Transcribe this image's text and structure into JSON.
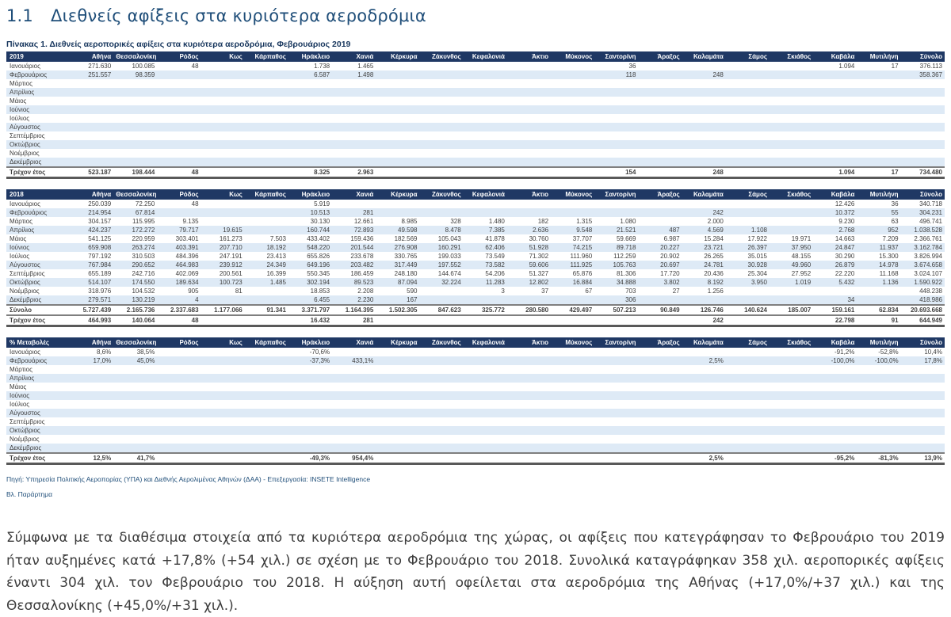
{
  "page": {
    "section_number": "1.1",
    "section_title": "Διεθνείς αφίξεις στα κυριότερα αεροδρόμια",
    "table_caption": "Πίνακας 1. Διεθνείς αεροπορικές αφίξεις στα κυριότερα αεροδρόμια, Φεβρουάριος 2019",
    "source_note": "Πηγή: Υπηρεσία Πολιτικής Αεροπορίας (ΥΠΑ) και Διεθνής  Αερολιμένας Αθηνών (ΔΑΑ) - Επεξεργασία: INSETE Intelligence",
    "appendix_note": "Βλ. Παράρτημα",
    "body_paragraph": "Σύμφωνα με τα διαθέσιμα στοιχεία από τα κυριότερα αεροδρόμια της χώρας, οι αφίξεις που κατεγράφησαν το Φεβρουάριο του 2019 ήταν αυξημένες κατά +17,8% (+54 χιλ.) σε σχέση με το Φεβρουάριο του 2018. Συνολικά καταγράφηκαν 358 χιλ. αεροπορικές αφίξεις έναντι 304 χιλ. τον Φεβρουάριο του 2018. Η αύξηση αυτή οφείλεται στα αεροδρόμια της Αθήνας (+17,0%/+37 χιλ.) και της Θεσσαλονίκης (+45,0%/+31 χιλ.)."
  },
  "colors": {
    "header_bg": "#1F3864",
    "stripe": "#DEEAF6",
    "title_blue": "#1F4E79",
    "caption_blue": "#17365D",
    "cell_text": "#404040"
  },
  "columns": [
    "Αθήνα",
    "Θεσσαλονίκη",
    "Ρόδος",
    "Κως",
    "Κάρπαθος",
    "Ηράκλειο",
    "Χανιά",
    "Κέρκυρα",
    "Ζάκυνθος",
    "Κεφαλονιά",
    "Άκτιο",
    "Μύκονος",
    "Σαντορίνη",
    "Άραξος",
    "Καλαμάτα",
    "Σάμος",
    "Σκιάθος",
    "Καβάλα",
    "Μυτιλήνη",
    "Σύνολο"
  ],
  "tables": [
    {
      "label": "2019",
      "rows": [
        {
          "label": "Ιανουάριος",
          "type": "month",
          "values": [
            "271.630",
            "100.085",
            "48",
            "",
            "",
            "1.738",
            "1.465",
            "",
            "",
            "",
            "",
            "",
            "36",
            "",
            "",
            "",
            "",
            "1.094",
            "17",
            "376.113"
          ]
        },
        {
          "label": "Φεβρουάριος",
          "type": "month",
          "values": [
            "251.557",
            "98.359",
            "",
            "",
            "",
            "6.587",
            "1.498",
            "",
            "",
            "",
            "",
            "",
            "118",
            "",
            "248",
            "",
            "",
            "",
            "",
            "358.367"
          ]
        },
        {
          "label": "Μάρτιος",
          "type": "month",
          "values": []
        },
        {
          "label": "Απρίλιος",
          "type": "month",
          "values": []
        },
        {
          "label": "Μάιος",
          "type": "month",
          "values": []
        },
        {
          "label": "Ιούνιος",
          "type": "month",
          "values": []
        },
        {
          "label": "Ιούλιος",
          "type": "month",
          "values": []
        },
        {
          "label": "Αύγουστος",
          "type": "month",
          "values": []
        },
        {
          "label": "Σεπτέμβριος",
          "type": "month",
          "values": []
        },
        {
          "label": "Οκτώβριος",
          "type": "month",
          "values": []
        },
        {
          "label": "Νοέμβριος",
          "type": "month",
          "values": []
        },
        {
          "label": "Δεκέμβριος",
          "type": "month",
          "values": []
        },
        {
          "label": "Τρέχον έτος",
          "type": "current",
          "values": [
            "523.187",
            "198.444",
            "48",
            "",
            "",
            "8.325",
            "2.963",
            "",
            "",
            "",
            "",
            "",
            "154",
            "",
            "248",
            "",
            "",
            "1.094",
            "17",
            "734.480"
          ]
        }
      ]
    },
    {
      "label": "2018",
      "rows": [
        {
          "label": "Ιανουάριος",
          "type": "month",
          "values": [
            "250.039",
            "72.250",
            "48",
            "",
            "",
            "5.919",
            "",
            "",
            "",
            "",
            "",
            "",
            "",
            "",
            "",
            "",
            "",
            "12.426",
            "36",
            "340.718"
          ]
        },
        {
          "label": "Φεβρουάριος",
          "type": "month",
          "values": [
            "214.954",
            "67.814",
            "",
            "",
            "",
            "10.513",
            "281",
            "",
            "",
            "",
            "",
            "",
            "",
            "",
            "242",
            "",
            "",
            "10.372",
            "55",
            "304.231"
          ]
        },
        {
          "label": "Μάρτιος",
          "type": "month",
          "values": [
            "304.157",
            "115.995",
            "9.135",
            "",
            "",
            "30.130",
            "12.661",
            "8.985",
            "328",
            "1.480",
            "182",
            "1.315",
            "1.080",
            "",
            "2.000",
            "",
            "",
            "9.230",
            "63",
            "496.741"
          ]
        },
        {
          "label": "Απρίλιος",
          "type": "month",
          "values": [
            "424.237",
            "172.272",
            "79.717",
            "19.615",
            "",
            "160.744",
            "72.893",
            "49.598",
            "8.478",
            "7.385",
            "2.636",
            "9.548",
            "21.521",
            "487",
            "4.569",
            "1.108",
            "",
            "2.768",
            "952",
            "1.038.528"
          ]
        },
        {
          "label": "Μάιος",
          "type": "month",
          "values": [
            "541.125",
            "220.959",
            "303.401",
            "161.273",
            "7.503",
            "433.402",
            "159.436",
            "182.569",
            "105.043",
            "41.878",
            "30.760",
            "37.707",
            "59.669",
            "6.987",
            "15.284",
            "17.922",
            "19.971",
            "14.663",
            "7.209",
            "2.366.761"
          ]
        },
        {
          "label": "Ιούνιος",
          "type": "month",
          "values": [
            "659.908",
            "263.274",
            "403.391",
            "207.710",
            "18.192",
            "548.220",
            "201.544",
            "276.908",
            "160.291",
            "62.406",
            "51.928",
            "74.215",
            "89.718",
            "20.227",
            "23.721",
            "26.397",
            "37.950",
            "24.847",
            "11.937",
            "3.162.784"
          ]
        },
        {
          "label": "Ιούλιος",
          "type": "month",
          "values": [
            "797.192",
            "310.503",
            "484.396",
            "247.191",
            "23.413",
            "655.826",
            "233.678",
            "330.765",
            "199.033",
            "73.549",
            "71.302",
            "111.960",
            "112.259",
            "20.902",
            "26.265",
            "35.015",
            "48.155",
            "30.290",
            "15.300",
            "3.826.994"
          ]
        },
        {
          "label": "Αύγουστος",
          "type": "month",
          "values": [
            "767.984",
            "290.652",
            "464.983",
            "239.912",
            "24.349",
            "649.196",
            "203.482",
            "317.449",
            "197.552",
            "73.582",
            "59.606",
            "111.925",
            "105.763",
            "20.697",
            "24.781",
            "30.928",
            "49.960",
            "26.879",
            "14.978",
            "3.674.658"
          ]
        },
        {
          "label": "Σεπτέμβριος",
          "type": "month",
          "values": [
            "655.189",
            "242.716",
            "402.069",
            "200.561",
            "16.399",
            "550.345",
            "186.459",
            "248.180",
            "144.674",
            "54.206",
            "51.327",
            "65.876",
            "81.306",
            "17.720",
            "20.436",
            "25.304",
            "27.952",
            "22.220",
            "11.168",
            "3.024.107"
          ]
        },
        {
          "label": "Οκτώβριος",
          "type": "month",
          "values": [
            "514.107",
            "174.550",
            "189.634",
            "100.723",
            "1.485",
            "302.194",
            "89.523",
            "87.094",
            "32.224",
            "11.283",
            "12.802",
            "16.884",
            "34.888",
            "3.802",
            "8.192",
            "3.950",
            "1.019",
            "5.432",
            "1.136",
            "1.590.922"
          ]
        },
        {
          "label": "Νοέμβριος",
          "type": "month",
          "values": [
            "318.976",
            "104.532",
            "905",
            "81",
            "",
            "18.853",
            "2.208",
            "590",
            "",
            "3",
            "37",
            "67",
            "703",
            "27",
            "1.256",
            "",
            "",
            "",
            "",
            "448.238"
          ]
        },
        {
          "label": "Δεκέμβριος",
          "type": "month",
          "values": [
            "279.571",
            "130.219",
            "4",
            "",
            "",
            "6.455",
            "2.230",
            "167",
            "",
            "",
            "",
            "",
            "306",
            "",
            "",
            "",
            "",
            "34",
            "",
            "418.986"
          ]
        },
        {
          "label": "Σύνολο",
          "type": "grand",
          "values": [
            "5.727.439",
            "2.165.736",
            "2.337.683",
            "1.177.066",
            "91.341",
            "3.371.797",
            "1.164.395",
            "1.502.305",
            "847.623",
            "325.772",
            "280.580",
            "429.497",
            "507.213",
            "90.849",
            "126.746",
            "140.624",
            "185.007",
            "159.161",
            "62.834",
            "20.693.668"
          ]
        },
        {
          "label": "Τρέχον έτος",
          "type": "current",
          "values": [
            "464.993",
            "140.064",
            "48",
            "",
            "",
            "16.432",
            "281",
            "",
            "",
            "",
            "",
            "",
            "",
            "",
            "242",
            "",
            "",
            "22.798",
            "91",
            "644.949"
          ]
        }
      ]
    },
    {
      "label": "% Μεταβολές",
      "rows": [
        {
          "label": "Ιανουάριος",
          "type": "month",
          "values": [
            "8,6%",
            "38,5%",
            "",
            "",
            "",
            "-70,6%",
            "",
            "",
            "",
            "",
            "",
            "",
            "",
            "",
            "",
            "",
            "",
            "-91,2%",
            "-52,8%",
            "10,4%"
          ]
        },
        {
          "label": "Φεβρουάριος",
          "type": "month",
          "values": [
            "17,0%",
            "45,0%",
            "",
            "",
            "",
            "-37,3%",
            "433,1%",
            "",
            "",
            "",
            "",
            "",
            "",
            "",
            "2,5%",
            "",
            "",
            "-100,0%",
            "-100,0%",
            "17,8%"
          ]
        },
        {
          "label": "Μάρτιος",
          "type": "month",
          "values": []
        },
        {
          "label": "Απρίλιος",
          "type": "month",
          "values": []
        },
        {
          "label": "Μάιος",
          "type": "month",
          "values": []
        },
        {
          "label": "Ιούνιος",
          "type": "month",
          "values": []
        },
        {
          "label": "Ιούλιος",
          "type": "month",
          "values": []
        },
        {
          "label": "Αύγουστος",
          "type": "month",
          "values": []
        },
        {
          "label": "Σεπτέμβριος",
          "type": "month",
          "values": []
        },
        {
          "label": "Οκτώβριος",
          "type": "month",
          "values": []
        },
        {
          "label": "Νοέμβριος",
          "type": "month",
          "values": []
        },
        {
          "label": "Δεκέμβριος",
          "type": "month",
          "values": []
        },
        {
          "label": "Τρέχον έτος",
          "type": "current",
          "values": [
            "12,5%",
            "41,7%",
            "",
            "",
            "",
            "-49,3%",
            "954,4%",
            "",
            "",
            "",
            "",
            "",
            "",
            "",
            "2,5%",
            "",
            "",
            "-95,2%",
            "-81,3%",
            "13,9%"
          ]
        }
      ]
    }
  ]
}
